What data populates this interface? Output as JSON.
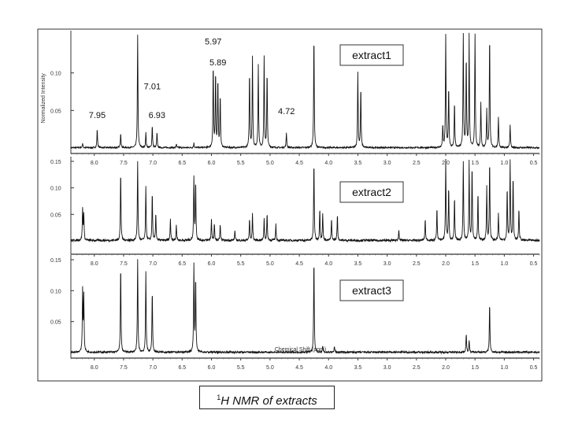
{
  "caption": {
    "nucleus": "1",
    "text": "H NMR of extracts"
  },
  "chart_data": {
    "type": "line",
    "xlabel": "Chemical Shift (ppm)",
    "ylabel": "Normalized Intensity",
    "x_reversed": true,
    "xlim": [
      8.4,
      0.4
    ],
    "x_ticks": [
      "8.0",
      "7.5",
      "7.0",
      "6.5",
      "6.0",
      "5.5",
      "5.0",
      "4.5",
      "4.0",
      "3.5",
      "3.0",
      "2.5",
      "2.0",
      "1.5",
      "1.0",
      "0.5"
    ],
    "panels": [
      {
        "name": "extract1",
        "ylim": [
          0,
          0.15
        ],
        "y_ticks": [
          "0.10",
          "0.05"
        ],
        "baseline_noise": 0.002,
        "peaks": [
          [
            8.2,
            0.006
          ],
          [
            7.95,
            0.025
          ],
          [
            7.55,
            0.02
          ],
          [
            7.26,
            0.15
          ],
          [
            7.12,
            0.02
          ],
          [
            7.01,
            0.03
          ],
          [
            6.93,
            0.02
          ],
          [
            6.6,
            0.005
          ],
          [
            6.3,
            0.006
          ],
          [
            5.97,
            0.11
          ],
          [
            5.93,
            0.1
          ],
          [
            5.89,
            0.09
          ],
          [
            5.85,
            0.07
          ],
          [
            5.35,
            0.1
          ],
          [
            5.3,
            0.12
          ],
          [
            5.2,
            0.11
          ],
          [
            5.1,
            0.12
          ],
          [
            5.05,
            0.1
          ],
          [
            4.72,
            0.02
          ],
          [
            4.25,
            0.15
          ],
          [
            3.5,
            0.1
          ],
          [
            3.45,
            0.08
          ],
          [
            2.05,
            0.03
          ],
          [
            2.0,
            0.15
          ],
          [
            1.95,
            0.08
          ],
          [
            1.85,
            0.06
          ],
          [
            1.7,
            0.15
          ],
          [
            1.65,
            0.12
          ],
          [
            1.6,
            0.15
          ],
          [
            1.5,
            0.15
          ],
          [
            1.4,
            0.06
          ],
          [
            1.3,
            0.05
          ],
          [
            1.25,
            0.15
          ],
          [
            1.1,
            0.04
          ],
          [
            0.9,
            0.03
          ]
        ],
        "labels": [
          {
            "x": 7.95,
            "y": 0.04,
            "text": "7.95"
          },
          {
            "x": 7.01,
            "y": 0.078,
            "text": "7.01"
          },
          {
            "x": 6.93,
            "y": 0.04,
            "text": "6.93"
          },
          {
            "x": 5.97,
            "y": 0.138,
            "text": "5.97"
          },
          {
            "x": 5.89,
            "y": 0.11,
            "text": "5.89"
          },
          {
            "x": 4.72,
            "y": 0.045,
            "text": "4.72"
          }
        ]
      },
      {
        "name": "extract2",
        "ylim": [
          0,
          0.15
        ],
        "y_ticks": [
          "0.15",
          "0.10",
          "0.05"
        ],
        "baseline_noise": 0.004,
        "peaks": [
          [
            8.2,
            0.06
          ],
          [
            8.18,
            0.05
          ],
          [
            7.55,
            0.13
          ],
          [
            7.26,
            0.15
          ],
          [
            7.12,
            0.1
          ],
          [
            7.01,
            0.09
          ],
          [
            6.95,
            0.05
          ],
          [
            6.7,
            0.04
          ],
          [
            6.6,
            0.03
          ],
          [
            6.3,
            0.12
          ],
          [
            6.27,
            0.11
          ],
          [
            6.0,
            0.04
          ],
          [
            5.95,
            0.03
          ],
          [
            5.85,
            0.03
          ],
          [
            5.6,
            0.02
          ],
          [
            5.35,
            0.04
          ],
          [
            5.3,
            0.05
          ],
          [
            5.1,
            0.04
          ],
          [
            5.05,
            0.05
          ],
          [
            4.9,
            0.03
          ],
          [
            4.25,
            0.15
          ],
          [
            4.15,
            0.06
          ],
          [
            4.1,
            0.05
          ],
          [
            3.95,
            0.04
          ],
          [
            3.85,
            0.05
          ],
          [
            2.8,
            0.02
          ],
          [
            2.35,
            0.04
          ],
          [
            2.15,
            0.06
          ],
          [
            2.0,
            0.15
          ],
          [
            1.95,
            0.1
          ],
          [
            1.85,
            0.08
          ],
          [
            1.7,
            0.15
          ],
          [
            1.6,
            0.15
          ],
          [
            1.55,
            0.14
          ],
          [
            1.45,
            0.09
          ],
          [
            1.3,
            0.1
          ],
          [
            1.25,
            0.15
          ],
          [
            1.1,
            0.05
          ],
          [
            0.95,
            0.1
          ],
          [
            0.9,
            0.15
          ],
          [
            0.85,
            0.12
          ],
          [
            0.75,
            0.06
          ]
        ]
      },
      {
        "name": "extract3",
        "ylim": [
          0,
          0.15
        ],
        "y_ticks": [
          "0.15",
          "0.10",
          "0.05"
        ],
        "baseline_noise": 0.003,
        "peaks": [
          [
            8.2,
            0.1
          ],
          [
            8.18,
            0.09
          ],
          [
            7.55,
            0.14
          ],
          [
            7.26,
            0.15
          ],
          [
            7.12,
            0.13
          ],
          [
            7.01,
            0.1
          ],
          [
            6.3,
            0.14
          ],
          [
            6.27,
            0.12
          ],
          [
            4.25,
            0.15
          ],
          [
            4.1,
            0.01
          ],
          [
            3.9,
            0.01
          ],
          [
            1.65,
            0.03
          ],
          [
            1.6,
            0.02
          ],
          [
            1.25,
            0.08
          ]
        ]
      }
    ]
  }
}
